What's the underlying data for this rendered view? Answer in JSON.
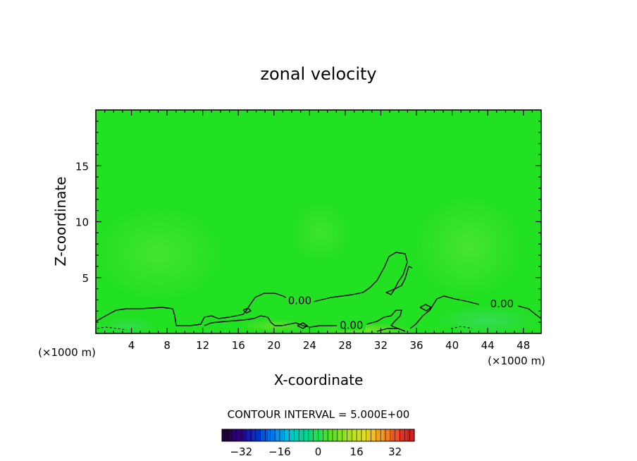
{
  "chart_data": {
    "type": "heatmap",
    "title": "zonal velocity",
    "xlabel": "X-coordinate",
    "ylabel": "Z-coordinate",
    "x_unit_left": "(×1000 m)",
    "x_unit_right": "(×1000 m)",
    "xlim": [
      0,
      50
    ],
    "ylim": [
      0,
      20
    ],
    "x_ticks": [
      4,
      8,
      12,
      16,
      20,
      24,
      28,
      32,
      36,
      40,
      44,
      48
    ],
    "y_ticks": [
      5,
      10,
      15
    ],
    "contour_interval_text": "CONTOUR INTERVAL = 5.000E+00",
    "contour_labels": [
      {
        "text": "0.00",
        "x": 22.9,
        "z": 3.0
      },
      {
        "text": "0.00",
        "x": 28.7,
        "z": 0.8
      },
      {
        "text": "0.00",
        "x": 45.6,
        "z": 2.7
      }
    ],
    "colorbar": {
      "min": -40,
      "max": 40,
      "ticks": [
        -32,
        -16,
        0,
        16,
        32
      ],
      "colors": [
        "#1a0033",
        "#2a0066",
        "#2a0088",
        "#1a1aaa",
        "#0033cc",
        "#0055dd",
        "#0077ee",
        "#0099ee",
        "#00bbdd",
        "#00ccbb",
        "#00d499",
        "#00dd77",
        "#22e055",
        "#44e033",
        "#66e022",
        "#88e022",
        "#aae022",
        "#c8e022",
        "#e0dd22",
        "#eec022",
        "#f0a020",
        "#f08020",
        "#ee5522",
        "#dd3322",
        "#cc2222"
      ],
      "field_color": "#22e022"
    }
  }
}
